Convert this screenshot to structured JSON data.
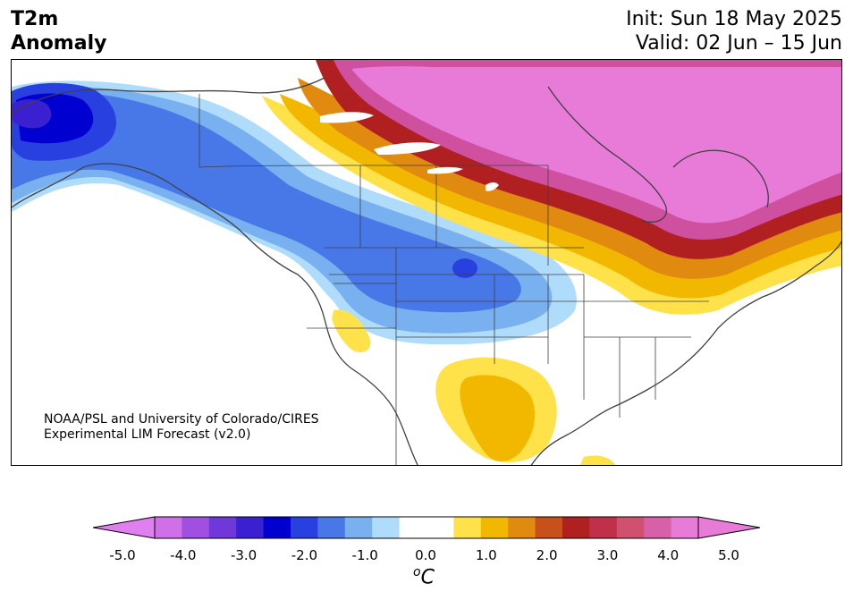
{
  "title": {
    "variable": "T2m",
    "quantity": "Anomaly"
  },
  "forecast": {
    "init": "Init: Sun 18 May 2025",
    "valid": "Valid: 02 Jun – 15 Jun"
  },
  "credit": {
    "line1": "NOAA/PSL and University of Colorado/CIRES",
    "line2": "Experimental LIM Forecast (v2.0)"
  },
  "colorbar": {
    "unit_label": "°C",
    "unit_base": "o",
    "unit_letter": "C",
    "tick_labels": [
      "-5.0",
      "-4.0",
      "-3.0",
      "-2.0",
      "-1.0",
      "0.0",
      "1.0",
      "2.0",
      "3.0",
      "4.0",
      "5.0"
    ],
    "colors": [
      "#d070e8",
      "#a050e0",
      "#7038d8",
      "#3a20d0",
      "#0000d0",
      "#2840e0",
      "#4878e8",
      "#78b0f0",
      "#b0dcfc",
      "#ffffff",
      "#ffffff",
      "#ffe24a",
      "#f2b800",
      "#e08a10",
      "#c8501a",
      "#b02020",
      "#c03048",
      "#d05070",
      "#d860a8",
      "#e87ad8"
    ],
    "under_color": "#e080f0",
    "over_color": "#e87ad8"
  },
  "map": {
    "region": "North America",
    "colors": {
      "cold_strong": "#0000d0",
      "cold": "#2840e0",
      "cool": "#4878e8",
      "cool_light": "#78b0f0",
      "cool_faint": "#b0dcfc",
      "warm_faint": "#ffe24a",
      "warm": "#f2b800",
      "warm_orange": "#e08a10",
      "hot": "#b02020",
      "hot_pink": "#d860a8",
      "hot_max": "#e87ad8",
      "border": "#404040"
    }
  }
}
